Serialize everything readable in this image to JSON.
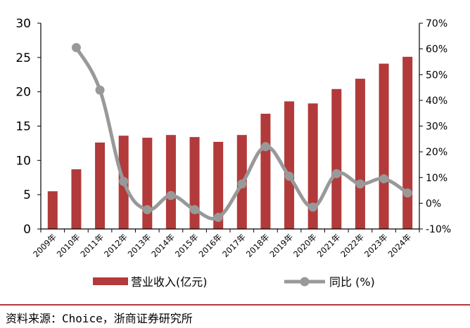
{
  "chart_data": {
    "type": "bar",
    "title": "",
    "categories": [
      "2009年",
      "2010年",
      "2011年",
      "2012年",
      "2013年",
      "2014年",
      "2015年",
      "2016年",
      "2017年",
      "2018年",
      "2019年",
      "2020年",
      "2021年",
      "2022年",
      "2023年",
      "2024年"
    ],
    "series": [
      {
        "name": "营业收入(亿元)",
        "type": "bar",
        "axis": "left",
        "color": "#b23a3a",
        "values": [
          5.5,
          8.7,
          12.6,
          13.6,
          13.3,
          13.7,
          13.4,
          12.7,
          13.7,
          16.8,
          18.6,
          18.3,
          20.4,
          21.9,
          24.1,
          25.1
        ]
      },
      {
        "name": "同比 (%)",
        "type": "line",
        "axis": "right",
        "color": "#999999",
        "values": [
          null,
          60.5,
          44.0,
          8.5,
          -2.5,
          3.0,
          -2.5,
          -5.5,
          7.5,
          22.0,
          10.5,
          -1.5,
          11.5,
          7.5,
          9.5,
          4.0
        ]
      }
    ],
    "yleft": {
      "min": 0,
      "max": 30,
      "ticks": [
        "0",
        "5",
        "10",
        "15",
        "20",
        "25",
        "30"
      ]
    },
    "yright": {
      "min": -10,
      "max": 70,
      "ticks": [
        "-10%",
        "0%",
        "10%",
        "20%",
        "30%",
        "40%",
        "50%",
        "60%",
        "70%"
      ]
    },
    "legend_position": "bottom",
    "grid": false
  },
  "source": "资料来源：Choice，浙商证券研究所"
}
